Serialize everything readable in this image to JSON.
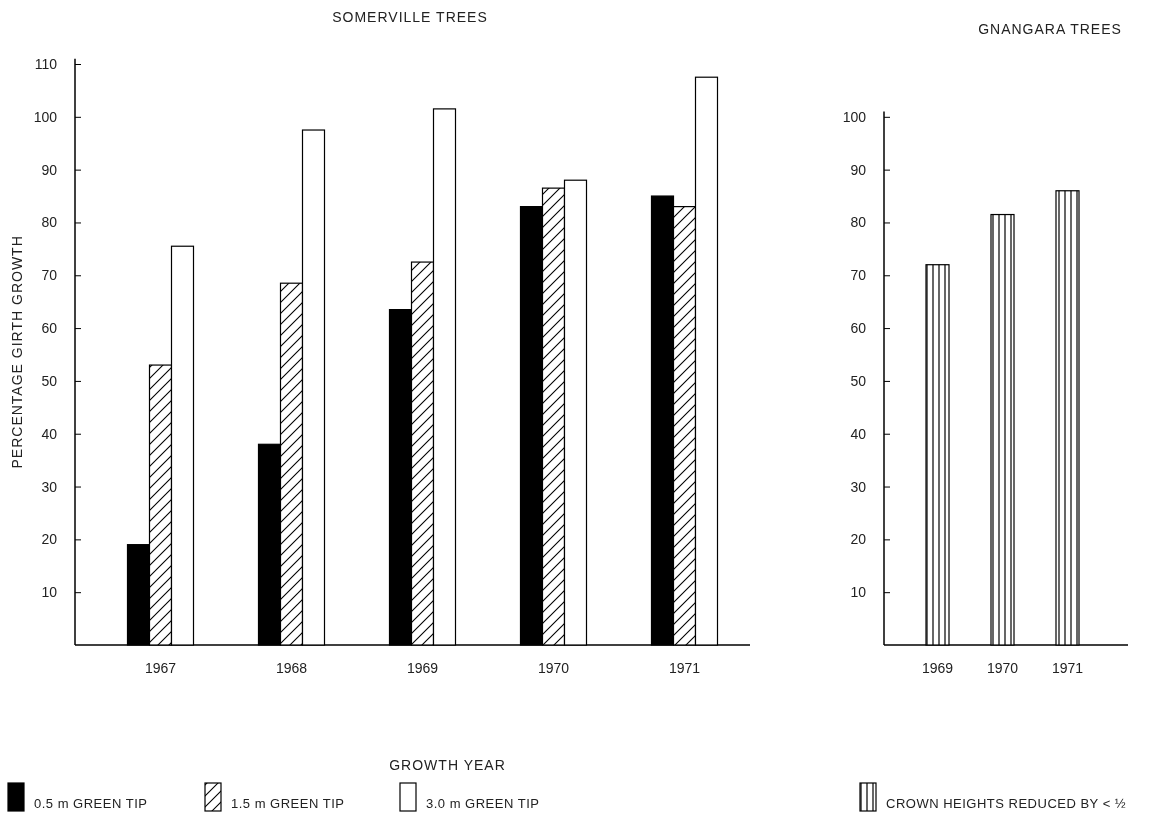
{
  "chart_data": [
    {
      "type": "bar",
      "title": "SOMERVILLE TREES",
      "xlabel": "GROWTH YEAR",
      "ylabel": "PERCENTAGE GIRTH GROWTH",
      "categories": [
        "1967",
        "1968",
        "1969",
        "1970",
        "1971"
      ],
      "series": [
        {
          "name": "0.5 m GREEN TIP",
          "color": "#000000",
          "values": [
            19,
            38,
            63.5,
            83,
            85
          ]
        },
        {
          "name": "1.5 m GREEN TIP",
          "color": "#000000",
          "values": [
            53,
            68.5,
            72.5,
            86.5,
            83
          ]
        },
        {
          "name": "3.0 m GREEN TIP",
          "color": "#ffffff",
          "values": [
            75.5,
            97.5,
            101.5,
            88,
            107.5
          ]
        }
      ],
      "ylim": [
        0,
        111
      ],
      "yticks": [
        10,
        20,
        30,
        40,
        50,
        60,
        70,
        80,
        90,
        100,
        110
      ],
      "grid": false,
      "legend": "bottom"
    },
    {
      "type": "bar",
      "title": "GNANGARA TREES",
      "categories": [
        "1969",
        "1970",
        "1971"
      ],
      "series": [
        {
          "name": "CROWN HEIGHTS REDUCED BY < ½",
          "color": "#000000",
          "values": [
            72,
            81.5,
            86
          ]
        }
      ],
      "ylim": [
        0,
        101
      ],
      "yticks": [
        10,
        20,
        30,
        40,
        50,
        60,
        70,
        80,
        90,
        100
      ],
      "grid": false,
      "legend": "bottom"
    }
  ]
}
